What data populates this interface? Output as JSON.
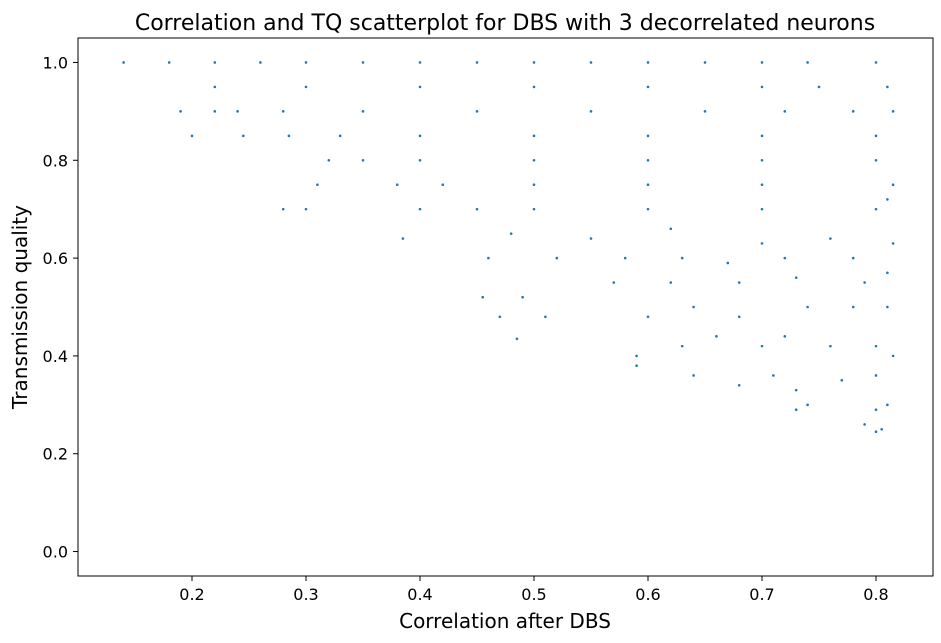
{
  "chart_data": {
    "type": "scatter",
    "title": "Correlation and TQ scatterplot for DBS with 3 decorrelated neurons",
    "xlabel": "Correlation after DBS",
    "ylabel": "Transmission quality",
    "xlim": [
      0.1,
      0.85
    ],
    "ylim": [
      -0.05,
      1.05
    ],
    "x_ticks": [
      0.2,
      0.3,
      0.4,
      0.5,
      0.6,
      0.7,
      0.8
    ],
    "x_tick_labels": [
      "0.2",
      "0.3",
      "0.4",
      "0.5",
      "0.6",
      "0.7",
      "0.8"
    ],
    "y_ticks": [
      0.0,
      0.2,
      0.4,
      0.6,
      0.8,
      1.0
    ],
    "y_tick_labels": [
      "0.0",
      "0.2",
      "0.4",
      "0.6",
      "0.8",
      "1.0"
    ],
    "grid": false,
    "marker_color": "#1f77b4",
    "series": [
      {
        "points": [
          [
            0.14,
            1.0
          ],
          [
            0.18,
            1.0
          ],
          [
            0.22,
            1.0
          ],
          [
            0.26,
            1.0
          ],
          [
            0.3,
            1.0
          ],
          [
            0.35,
            1.0
          ],
          [
            0.4,
            1.0
          ],
          [
            0.45,
            1.0
          ],
          [
            0.5,
            1.0
          ],
          [
            0.55,
            1.0
          ],
          [
            0.6,
            1.0
          ],
          [
            0.65,
            1.0
          ],
          [
            0.7,
            1.0
          ],
          [
            0.74,
            1.0
          ],
          [
            0.8,
            1.0
          ],
          [
            0.22,
            0.95
          ],
          [
            0.3,
            0.95
          ],
          [
            0.4,
            0.95
          ],
          [
            0.5,
            0.95
          ],
          [
            0.6,
            0.95
          ],
          [
            0.7,
            0.95
          ],
          [
            0.75,
            0.95
          ],
          [
            0.81,
            0.95
          ],
          [
            0.19,
            0.9
          ],
          [
            0.22,
            0.9
          ],
          [
            0.24,
            0.9
          ],
          [
            0.28,
            0.9
          ],
          [
            0.35,
            0.9
          ],
          [
            0.45,
            0.9
          ],
          [
            0.55,
            0.9
          ],
          [
            0.65,
            0.9
          ],
          [
            0.72,
            0.9
          ],
          [
            0.78,
            0.9
          ],
          [
            0.815,
            0.9
          ],
          [
            0.2,
            0.85
          ],
          [
            0.245,
            0.85
          ],
          [
            0.285,
            0.85
          ],
          [
            0.33,
            0.85
          ],
          [
            0.4,
            0.85
          ],
          [
            0.5,
            0.85
          ],
          [
            0.6,
            0.85
          ],
          [
            0.7,
            0.85
          ],
          [
            0.8,
            0.85
          ],
          [
            0.32,
            0.8
          ],
          [
            0.35,
            0.8
          ],
          [
            0.4,
            0.8
          ],
          [
            0.5,
            0.8
          ],
          [
            0.6,
            0.8
          ],
          [
            0.7,
            0.8
          ],
          [
            0.8,
            0.8
          ],
          [
            0.31,
            0.75
          ],
          [
            0.38,
            0.75
          ],
          [
            0.42,
            0.75
          ],
          [
            0.5,
            0.75
          ],
          [
            0.6,
            0.75
          ],
          [
            0.7,
            0.75
          ],
          [
            0.815,
            0.75
          ],
          [
            0.28,
            0.7
          ],
          [
            0.3,
            0.7
          ],
          [
            0.4,
            0.7
          ],
          [
            0.45,
            0.7
          ],
          [
            0.5,
            0.7
          ],
          [
            0.6,
            0.7
          ],
          [
            0.7,
            0.7
          ],
          [
            0.8,
            0.7
          ],
          [
            0.81,
            0.72
          ],
          [
            0.385,
            0.64
          ],
          [
            0.48,
            0.65
          ],
          [
            0.55,
            0.64
          ],
          [
            0.62,
            0.66
          ],
          [
            0.7,
            0.63
          ],
          [
            0.76,
            0.64
          ],
          [
            0.46,
            0.6
          ],
          [
            0.52,
            0.6
          ],
          [
            0.58,
            0.6
          ],
          [
            0.63,
            0.6
          ],
          [
            0.67,
            0.59
          ],
          [
            0.72,
            0.6
          ],
          [
            0.78,
            0.6
          ],
          [
            0.815,
            0.63
          ],
          [
            0.455,
            0.52
          ],
          [
            0.49,
            0.52
          ],
          [
            0.57,
            0.55
          ],
          [
            0.62,
            0.55
          ],
          [
            0.68,
            0.55
          ],
          [
            0.73,
            0.56
          ],
          [
            0.79,
            0.55
          ],
          [
            0.81,
            0.57
          ],
          [
            0.47,
            0.48
          ],
          [
            0.51,
            0.48
          ],
          [
            0.6,
            0.48
          ],
          [
            0.64,
            0.5
          ],
          [
            0.68,
            0.48
          ],
          [
            0.74,
            0.5
          ],
          [
            0.78,
            0.5
          ],
          [
            0.81,
            0.5
          ],
          [
            0.485,
            0.435
          ],
          [
            0.59,
            0.4
          ],
          [
            0.63,
            0.42
          ],
          [
            0.66,
            0.44
          ],
          [
            0.7,
            0.42
          ],
          [
            0.72,
            0.44
          ],
          [
            0.76,
            0.42
          ],
          [
            0.8,
            0.42
          ],
          [
            0.815,
            0.4
          ],
          [
            0.59,
            0.38
          ],
          [
            0.64,
            0.36
          ],
          [
            0.68,
            0.34
          ],
          [
            0.71,
            0.36
          ],
          [
            0.73,
            0.33
          ],
          [
            0.77,
            0.35
          ],
          [
            0.8,
            0.36
          ],
          [
            0.73,
            0.29
          ],
          [
            0.74,
            0.3
          ],
          [
            0.8,
            0.29
          ],
          [
            0.81,
            0.3
          ],
          [
            0.79,
            0.26
          ],
          [
            0.8,
            0.245
          ],
          [
            0.805,
            0.25
          ]
        ]
      }
    ]
  }
}
